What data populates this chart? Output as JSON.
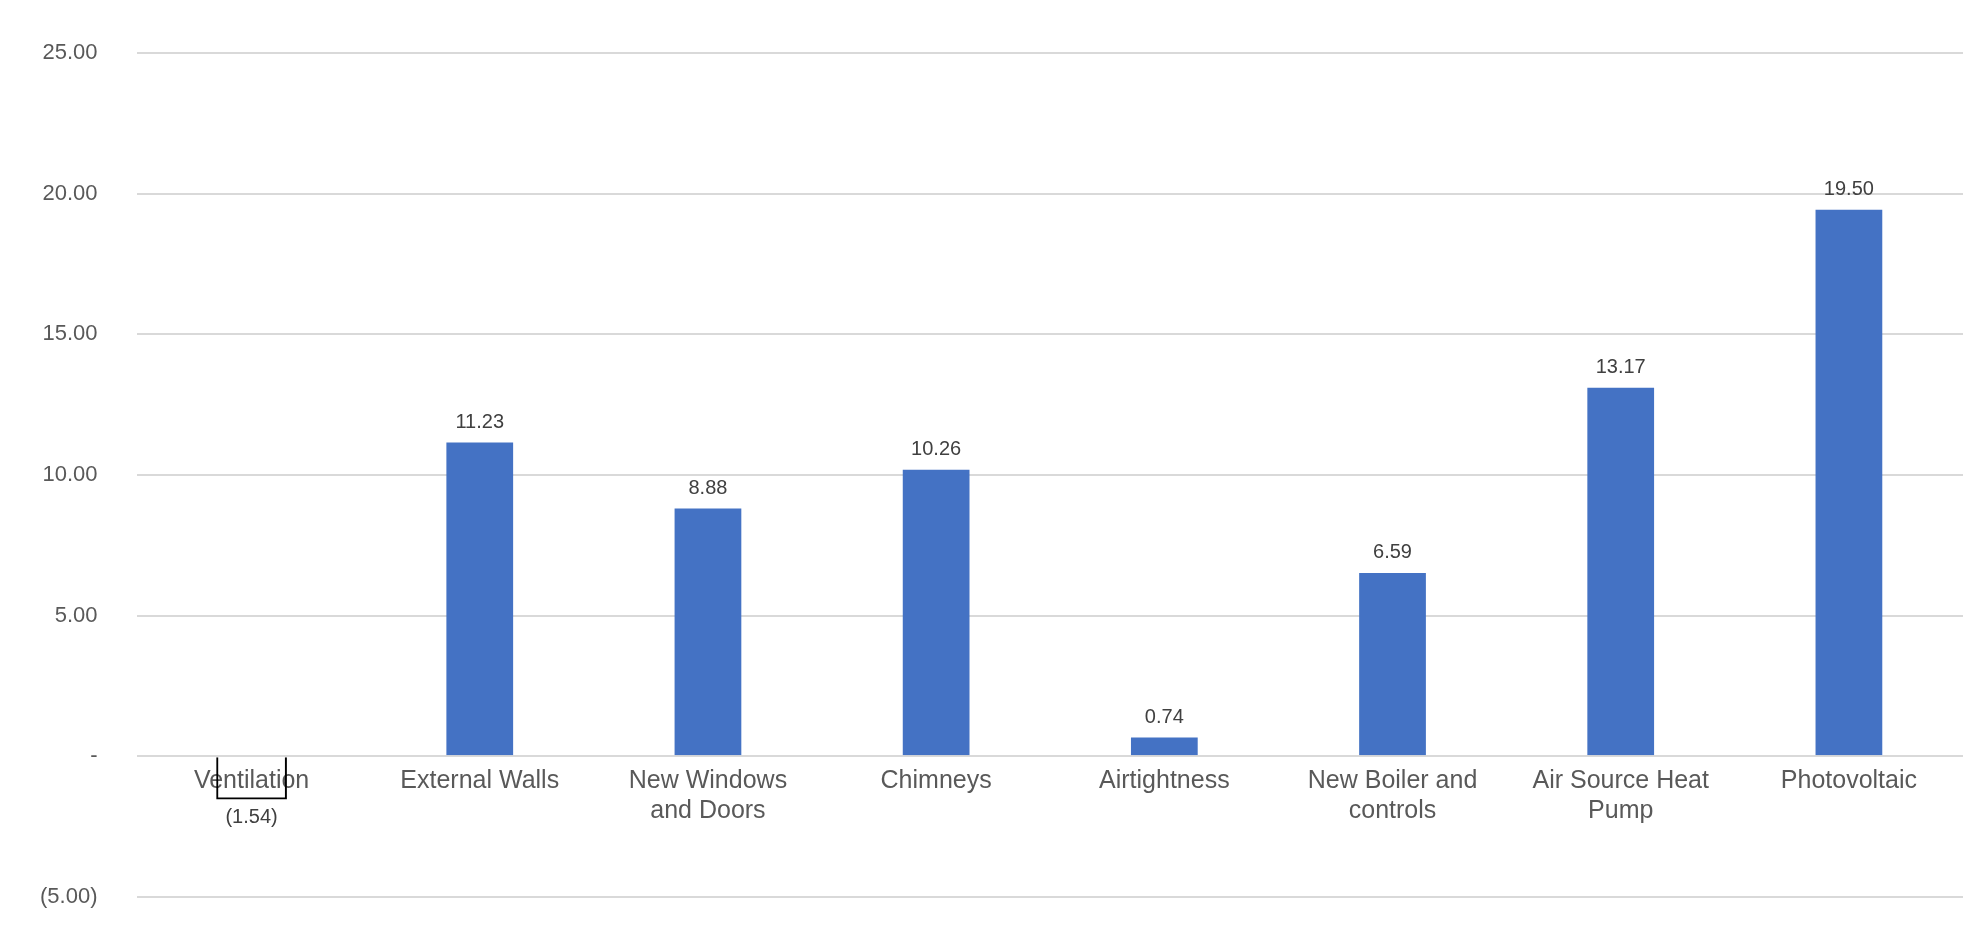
{
  "chart_data": {
    "type": "bar",
    "categories": [
      "Ventilation",
      "External Walls",
      "New Windows and Doors",
      "Chimneys",
      "Airtightness",
      "New Boiler and controls",
      "Air Source Heat Pump",
      "Photovoltaic"
    ],
    "values": [
      -1.54,
      11.23,
      8.88,
      10.26,
      0.74,
      6.59,
      13.17,
      19.5
    ],
    "colors": [
      "#000000",
      "#4472c4",
      "#4472c4",
      "#4472c4",
      "#4472c4",
      "#4472c4",
      "#4472c4",
      "#4472c4"
    ],
    "value_labels": [
      "(1.54)",
      "11.23",
      "8.88",
      "10.26",
      "0.74",
      "6.59",
      "13.17",
      "19.50"
    ],
    "ylim": [
      -5,
      25
    ],
    "yticks": [
      {
        "value": -5,
        "label": "(5.00)"
      },
      {
        "value": 0,
        "label": "-"
      },
      {
        "value": 5,
        "label": "5.00"
      },
      {
        "value": 10,
        "label": "10.00"
      },
      {
        "value": 15,
        "label": "15.00"
      },
      {
        "value": 20,
        "label": "20.00"
      },
      {
        "value": 25,
        "label": "25.00"
      }
    ],
    "grid": "y",
    "legend": false
  }
}
